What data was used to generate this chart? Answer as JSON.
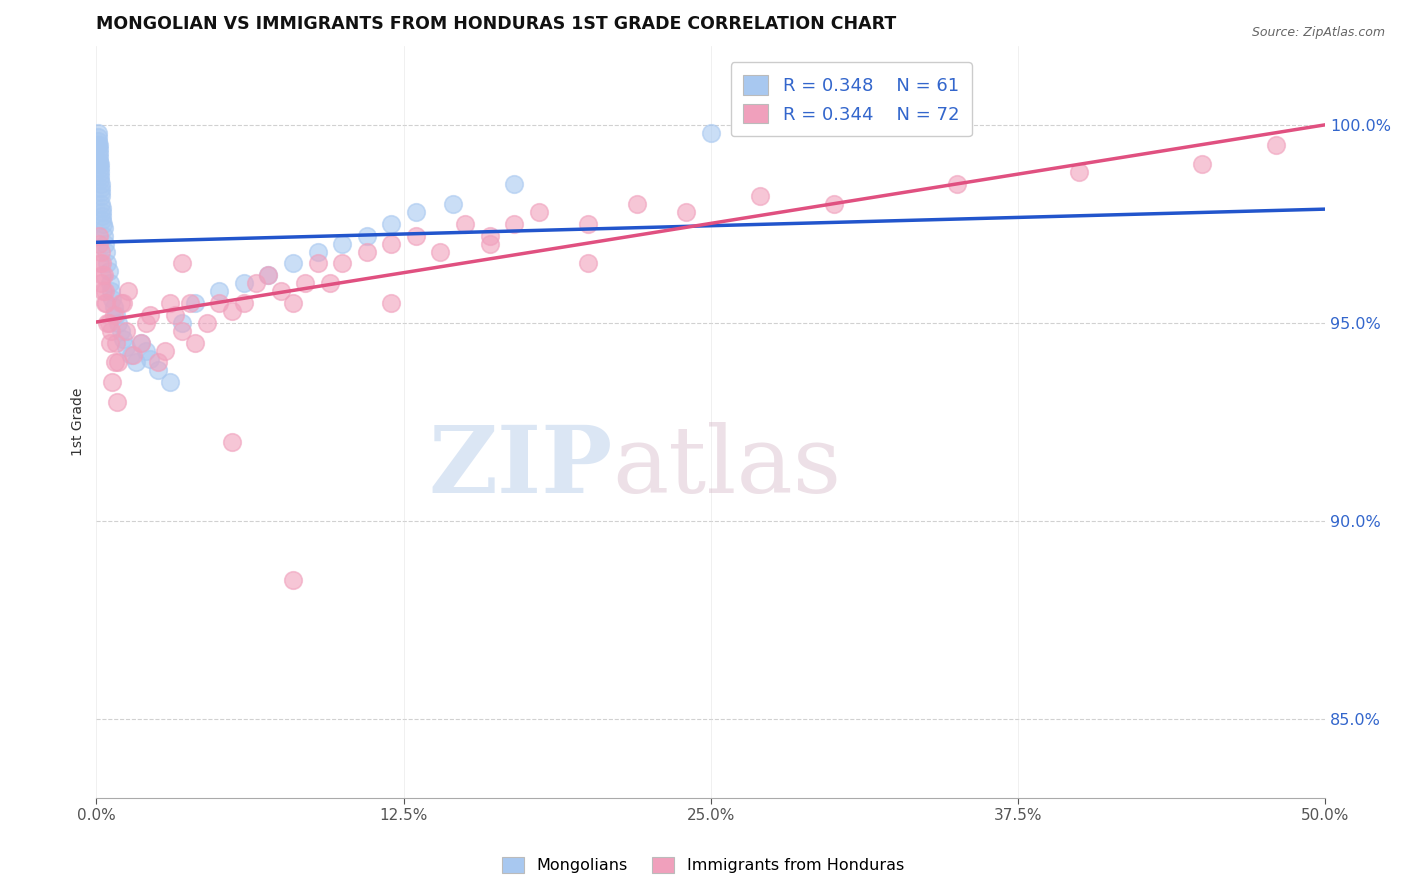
{
  "title": "MONGOLIAN VS IMMIGRANTS FROM HONDURAS 1ST GRADE CORRELATION CHART",
  "source_text": "Source: ZipAtlas.com",
  "ylabel": "1st Grade",
  "xlim": [
    0.0,
    50.0
  ],
  "ylim": [
    83.0,
    102.0
  ],
  "yticks": [
    85.0,
    90.0,
    95.0,
    100.0
  ],
  "xticks": [
    0.0,
    12.5,
    25.0,
    37.5,
    50.0
  ],
  "legend_r1": "R = 0.348",
  "legend_n1": "N = 61",
  "legend_r2": "R = 0.344",
  "legend_n2": "N = 72",
  "color_blue": "#A8C8F0",
  "color_pink": "#F0A0BC",
  "trendline_blue": "#2255CC",
  "trendline_pink": "#E05080",
  "watermark_zip": "ZIP",
  "watermark_atlas": "atlas",
  "legend_label1": "Mongolians",
  "legend_label2": "Immigrants from Honduras",
  "mongolian_x": [
    0.05,
    0.06,
    0.07,
    0.08,
    0.09,
    0.1,
    0.1,
    0.11,
    0.12,
    0.12,
    0.13,
    0.14,
    0.15,
    0.15,
    0.16,
    0.17,
    0.18,
    0.19,
    0.2,
    0.2,
    0.21,
    0.22,
    0.23,
    0.25,
    0.27,
    0.3,
    0.33,
    0.37,
    0.4,
    0.45,
    0.5,
    0.55,
    0.6,
    0.65,
    0.7,
    0.8,
    0.9,
    1.0,
    1.1,
    1.2,
    1.4,
    1.6,
    1.8,
    2.0,
    2.2,
    2.5,
    3.0,
    3.5,
    4.0,
    5.0,
    6.0,
    7.0,
    8.0,
    9.0,
    10.0,
    11.0,
    12.0,
    13.0,
    14.5,
    17.0,
    25.0
  ],
  "mongolian_y": [
    99.8,
    99.5,
    99.6,
    99.7,
    99.4,
    99.5,
    99.2,
    99.3,
    99.0,
    99.1,
    98.8,
    99.0,
    98.7,
    98.9,
    98.6,
    98.5,
    98.4,
    98.3,
    98.2,
    98.0,
    97.9,
    97.8,
    97.7,
    97.6,
    97.5,
    97.4,
    97.2,
    97.0,
    96.8,
    96.5,
    96.3,
    96.0,
    95.8,
    95.6,
    95.4,
    95.2,
    95.0,
    94.8,
    94.6,
    94.4,
    94.2,
    94.0,
    94.5,
    94.3,
    94.1,
    93.8,
    93.5,
    95.0,
    95.5,
    95.8,
    96.0,
    96.2,
    96.5,
    96.8,
    97.0,
    97.2,
    97.5,
    97.8,
    98.0,
    98.5,
    99.8
  ],
  "honduras_x": [
    0.1,
    0.15,
    0.2,
    0.25,
    0.3,
    0.35,
    0.4,
    0.5,
    0.6,
    0.7,
    0.8,
    0.9,
    1.0,
    1.2,
    1.5,
    1.8,
    2.0,
    2.5,
    2.8,
    3.0,
    3.2,
    3.5,
    3.8,
    4.0,
    4.5,
    5.0,
    5.5,
    6.0,
    6.5,
    7.0,
    7.5,
    8.0,
    8.5,
    9.0,
    9.5,
    10.0,
    11.0,
    12.0,
    13.0,
    14.0,
    15.0,
    16.0,
    17.0,
    18.0,
    20.0,
    22.0,
    24.0,
    27.0,
    30.0,
    35.0,
    40.0,
    45.0,
    48.0,
    0.12,
    0.18,
    0.22,
    0.28,
    0.35,
    0.45,
    0.55,
    0.65,
    0.75,
    0.85,
    1.1,
    1.3,
    2.2,
    3.5,
    5.5,
    8.0,
    12.0,
    16.0,
    20.0
  ],
  "honduras_y": [
    97.0,
    96.5,
    96.0,
    96.5,
    96.2,
    95.8,
    95.5,
    95.0,
    94.8,
    95.2,
    94.5,
    94.0,
    95.5,
    94.8,
    94.2,
    94.5,
    95.0,
    94.0,
    94.3,
    95.5,
    95.2,
    94.8,
    95.5,
    94.5,
    95.0,
    95.5,
    95.3,
    95.5,
    96.0,
    96.2,
    95.8,
    95.5,
    96.0,
    96.5,
    96.0,
    96.5,
    96.8,
    97.0,
    97.2,
    96.8,
    97.5,
    97.2,
    97.5,
    97.8,
    97.5,
    98.0,
    97.8,
    98.2,
    98.0,
    98.5,
    98.8,
    99.0,
    99.5,
    97.2,
    96.8,
    96.2,
    95.8,
    95.5,
    95.0,
    94.5,
    93.5,
    94.0,
    93.0,
    95.5,
    95.8,
    95.2,
    96.5,
    92.0,
    88.5,
    95.5,
    97.0,
    96.5
  ]
}
